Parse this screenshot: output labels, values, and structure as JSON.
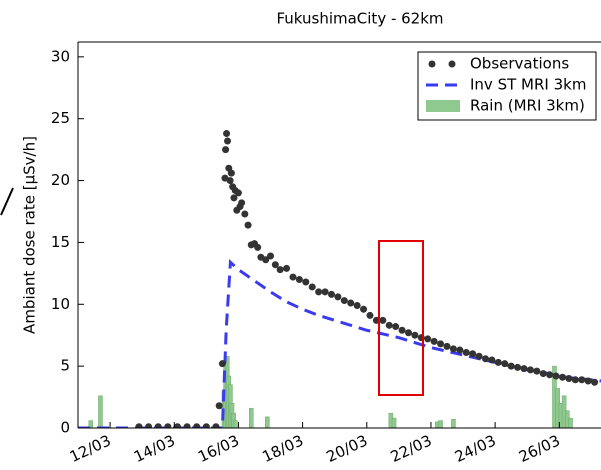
{
  "chart_data": {
    "type": "combo",
    "title": "FukushimaCity  -  62km",
    "y_label": "Ambiant dose rate [µSv/h]",
    "xlim": [
      11,
      27.3
    ],
    "ylim": [
      0,
      31.2
    ],
    "xticks": [
      {
        "value": 12,
        "label": "12/03"
      },
      {
        "value": 14,
        "label": "14/03"
      },
      {
        "value": 16,
        "label": "16/03"
      },
      {
        "value": 18,
        "label": "18/03"
      },
      {
        "value": 20,
        "label": "20/03"
      },
      {
        "value": 22,
        "label": "22/03"
      },
      {
        "value": 24,
        "label": "24/03"
      },
      {
        "value": 26,
        "label": "26/03"
      }
    ],
    "yticks": [
      0,
      5,
      10,
      15,
      20,
      25,
      30
    ],
    "legend": "upper right",
    "series": [
      {
        "name": "Observations",
        "type": "scatter",
        "color": "#333333",
        "x": [
          12.9,
          13.2,
          13.5,
          13.8,
          14.1,
          14.4,
          14.7,
          15.0,
          15.3,
          15.4,
          15.5,
          15.58,
          15.6,
          15.63,
          15.66,
          15.7,
          15.74,
          15.78,
          15.82,
          15.86,
          15.9,
          15.95,
          16.0,
          16.05,
          16.1,
          16.2,
          16.3,
          16.4,
          16.5,
          16.6,
          16.7,
          16.85,
          17.0,
          17.15,
          17.3,
          17.5,
          17.7,
          17.9,
          18.1,
          18.3,
          18.5,
          18.7,
          18.9,
          19.1,
          19.3,
          19.5,
          19.7,
          19.9,
          20.1,
          20.3,
          20.5,
          20.7,
          20.9,
          21.1,
          21.3,
          21.5,
          21.7,
          21.9,
          22.1,
          22.3,
          22.5,
          22.7,
          22.9,
          23.1,
          23.3,
          23.5,
          23.7,
          23.9,
          24.1,
          24.3,
          24.5,
          24.7,
          24.9,
          25.1,
          25.3,
          25.5,
          25.7,
          25.9,
          26.1,
          26.3,
          26.5,
          26.7,
          26.9,
          27.1
        ],
        "values": [
          0.1,
          0.1,
          0.1,
          0.1,
          0.1,
          0.1,
          0.1,
          0.1,
          0.1,
          1.8,
          5.2,
          20.2,
          22.5,
          23.8,
          23.2,
          21.0,
          20.0,
          20.6,
          19.5,
          18.6,
          19.2,
          17.6,
          19.0,
          17.9,
          18.2,
          17.3,
          16.4,
          14.8,
          14.9,
          14.6,
          13.8,
          13.6,
          13.9,
          13.2,
          12.8,
          12.9,
          12.2,
          12.0,
          11.8,
          11.4,
          11.0,
          11.0,
          10.8,
          10.6,
          10.3,
          10.1,
          9.9,
          9.6,
          9.1,
          8.7,
          8.7,
          8.3,
          8.2,
          7.9,
          7.7,
          7.5,
          7.3,
          7.2,
          7.0,
          6.8,
          6.6,
          6.4,
          6.3,
          6.1,
          6.0,
          5.8,
          5.6,
          5.5,
          5.3,
          5.2,
          5.0,
          4.9,
          4.8,
          4.7,
          4.6,
          4.4,
          4.3,
          4.2,
          4.1,
          4.0,
          3.9,
          3.9,
          3.8,
          3.7
        ]
      },
      {
        "name": "Inv ST MRI 3km",
        "type": "line",
        "color": "#3a3aee",
        "x": [
          11.0,
          15.5,
          15.62,
          15.75,
          16.0,
          16.5,
          17.0,
          17.5,
          18.0,
          18.5,
          19.0,
          19.5,
          20.0,
          20.5,
          21.0,
          21.5,
          22.0,
          22.5,
          23.0,
          23.5,
          24.0,
          24.5,
          25.0,
          25.5,
          26.0,
          26.5,
          27.0,
          27.3
        ],
        "values": [
          0,
          0,
          8,
          13.4,
          12.8,
          11.9,
          11.0,
          10.2,
          9.6,
          9.1,
          8.7,
          8.3,
          7.9,
          7.6,
          7.3,
          6.9,
          6.5,
          6.2,
          5.9,
          5.6,
          5.3,
          5.0,
          4.7,
          4.5,
          4.2,
          4.0,
          3.9,
          3.8
        ]
      },
      {
        "name": "Rain (MRI 3km)",
        "type": "bar",
        "color": "#8fc98f",
        "x": [
          11.4,
          11.7,
          15.55,
          15.6,
          15.65,
          15.7,
          15.75,
          15.8,
          15.85,
          15.9,
          16.4,
          16.9,
          20.75,
          20.85,
          22.2,
          22.3,
          22.7,
          25.85,
          25.95,
          26.05,
          26.15,
          26.25,
          26.35
        ],
        "values": [
          0.6,
          2.6,
          3.0,
          5.0,
          5.8,
          4.2,
          3.5,
          2.0,
          1.2,
          0.6,
          1.6,
          0.9,
          1.2,
          0.8,
          0.5,
          0.6,
          0.7,
          5.0,
          3.2,
          2.0,
          2.6,
          1.4,
          0.8
        ]
      }
    ]
  }
}
